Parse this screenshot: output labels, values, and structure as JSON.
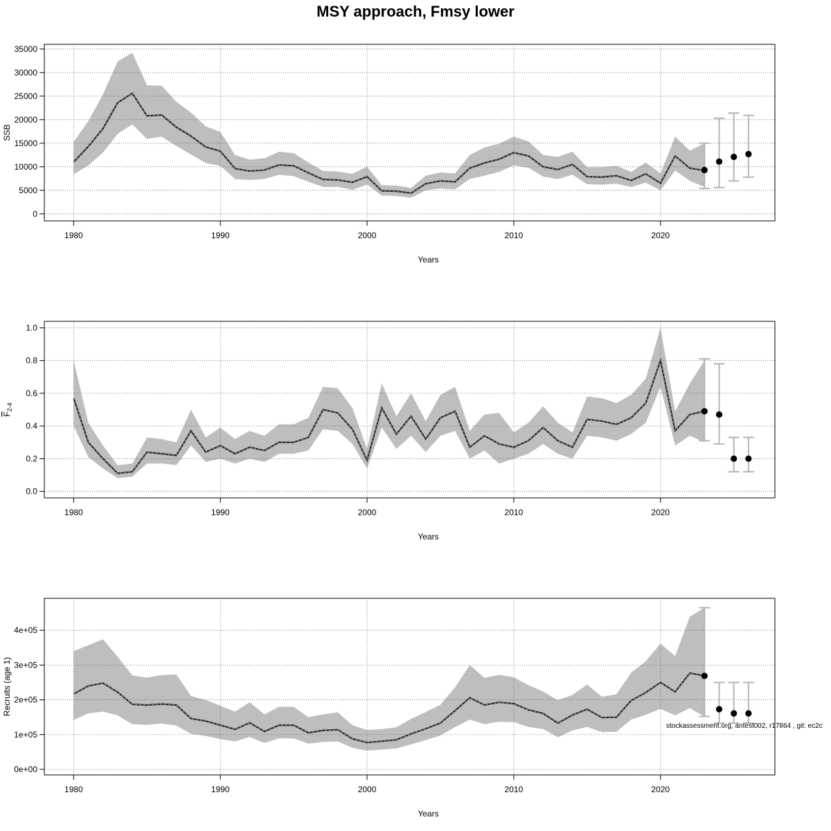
{
  "title": "MSY approach, Fmsy lower",
  "footnote": "stockassessment.org, antest002, r17864 , git: ec2c",
  "chart_data": [
    {
      "type": "line",
      "xlabel": "Years",
      "ylabel": "SSB",
      "xlim": [
        1978,
        2027.8
      ],
      "ylim": [
        -1500,
        36000
      ],
      "xticks": [
        1980,
        1990,
        2000,
        2010,
        2020
      ],
      "yticks": [
        0,
        5000,
        10000,
        15000,
        20000,
        25000,
        30000,
        35000
      ],
      "ytick_labels": [
        "0",
        "5000",
        "10000",
        "15000",
        "20000",
        "25000",
        "30000",
        "35000"
      ],
      "grid": true,
      "years": [
        1980,
        1981,
        1982,
        1983,
        1984,
        1985,
        1986,
        1987,
        1988,
        1989,
        1990,
        1991,
        1992,
        1993,
        1994,
        1995,
        1996,
        1997,
        1998,
        1999,
        2000,
        2001,
        2002,
        2003,
        2004,
        2005,
        2006,
        2007,
        2008,
        2009,
        2010,
        2011,
        2012,
        2013,
        2014,
        2015,
        2016,
        2017,
        2018,
        2019,
        2020,
        2021,
        2022,
        2023
      ],
      "estimate": [
        11000,
        14300,
        18100,
        23600,
        25600,
        20800,
        21000,
        18400,
        16500,
        14200,
        13300,
        9600,
        9100,
        9300,
        10400,
        10200,
        8700,
        7300,
        7200,
        6700,
        7900,
        4900,
        4800,
        4400,
        6400,
        7000,
        6800,
        9700,
        10800,
        11600,
        13000,
        12300,
        10000,
        9400,
        10500,
        7900,
        7800,
        8100,
        7100,
        8500,
        6500,
        12300,
        9700,
        9200
      ],
      "lower": [
        8400,
        10300,
        13000,
        17000,
        19000,
        15900,
        16400,
        14400,
        12600,
        10800,
        10200,
        7400,
        7200,
        7400,
        8300,
        8000,
        6800,
        5700,
        5700,
        5100,
        6200,
        3900,
        3800,
        3400,
        5000,
        5400,
        5200,
        7400,
        8100,
        8900,
        10300,
        9800,
        7900,
        7400,
        8300,
        6300,
        6200,
        6400,
        5700,
        6600,
        5000,
        9200,
        7000,
        5700
      ],
      "upper": [
        15300,
        19700,
        25400,
        32400,
        34200,
        27300,
        27200,
        23800,
        21500,
        18600,
        17400,
        12500,
        11500,
        11800,
        13200,
        12900,
        10900,
        9100,
        9000,
        8500,
        10000,
        6100,
        6000,
        5500,
        8100,
        8800,
        8600,
        12500,
        14100,
        14900,
        16400,
        15400,
        12500,
        12100,
        13200,
        9900,
        9900,
        10200,
        8900,
        10900,
        8600,
        16400,
        13400,
        15000
      ],
      "forecast": {
        "years": [
          2023,
          2024,
          2025,
          2026
        ],
        "median": [
          9300,
          11100,
          12100,
          12700
        ],
        "low": [
          5400,
          5600,
          7000,
          7800
        ],
        "high": [
          15000,
          20300,
          21400,
          20900
        ]
      }
    },
    {
      "type": "line",
      "xlabel": "Years",
      "ylabel": "F",
      "ylabel_sub": "2-4",
      "xlim": [
        1978,
        2027.8
      ],
      "ylim": [
        -0.04,
        1.04
      ],
      "xticks": [
        1980,
        1990,
        2000,
        2010,
        2020
      ],
      "yticks": [
        0,
        0.2,
        0.4,
        0.6,
        0.8,
        1.0
      ],
      "ytick_labels": [
        "0.0",
        "0.2",
        "0.4",
        "0.6",
        "0.8",
        "1.0"
      ],
      "grid": true,
      "years": [
        1980,
        1981,
        1982,
        1983,
        1984,
        1985,
        1986,
        1987,
        1988,
        1989,
        1990,
        1991,
        1992,
        1993,
        1994,
        1995,
        1996,
        1997,
        1998,
        1999,
        2000,
        2001,
        2002,
        2003,
        2004,
        2005,
        2006,
        2007,
        2008,
        2009,
        2010,
        2011,
        2012,
        2013,
        2014,
        2015,
        2016,
        2017,
        2018,
        2019,
        2020,
        2021,
        2022,
        2023
      ],
      "estimate": [
        0.57,
        0.3,
        0.2,
        0.11,
        0.12,
        0.24,
        0.23,
        0.22,
        0.37,
        0.24,
        0.28,
        0.23,
        0.27,
        0.25,
        0.3,
        0.3,
        0.33,
        0.5,
        0.48,
        0.38,
        0.19,
        0.51,
        0.35,
        0.46,
        0.32,
        0.45,
        0.49,
        0.27,
        0.34,
        0.29,
        0.27,
        0.31,
        0.39,
        0.31,
        0.27,
        0.44,
        0.43,
        0.41,
        0.45,
        0.54,
        0.8,
        0.37,
        0.47,
        0.49
      ],
      "lower": [
        0.4,
        0.21,
        0.14,
        0.08,
        0.09,
        0.17,
        0.17,
        0.16,
        0.28,
        0.18,
        0.2,
        0.17,
        0.2,
        0.18,
        0.23,
        0.23,
        0.25,
        0.38,
        0.37,
        0.29,
        0.14,
        0.39,
        0.26,
        0.34,
        0.24,
        0.34,
        0.37,
        0.2,
        0.25,
        0.17,
        0.2,
        0.23,
        0.29,
        0.23,
        0.2,
        0.34,
        0.33,
        0.31,
        0.35,
        0.42,
        0.64,
        0.28,
        0.34,
        0.3
      ],
      "upper": [
        0.8,
        0.42,
        0.28,
        0.16,
        0.17,
        0.33,
        0.32,
        0.3,
        0.5,
        0.33,
        0.39,
        0.32,
        0.37,
        0.34,
        0.41,
        0.41,
        0.45,
        0.64,
        0.63,
        0.51,
        0.26,
        0.66,
        0.46,
        0.6,
        0.43,
        0.59,
        0.64,
        0.37,
        0.47,
        0.48,
        0.36,
        0.42,
        0.52,
        0.42,
        0.36,
        0.58,
        0.57,
        0.54,
        0.59,
        0.69,
        1.0,
        0.49,
        0.66,
        0.8
      ],
      "forecast": {
        "years": [
          2023,
          2024,
          2025,
          2026
        ],
        "median": [
          0.49,
          0.47,
          0.2,
          0.2
        ],
        "low": [
          0.31,
          0.29,
          0.12,
          0.12
        ],
        "high": [
          0.81,
          0.78,
          0.33,
          0.33
        ]
      }
    },
    {
      "type": "line",
      "xlabel": "Years",
      "ylabel": "Recruits (age 1)",
      "xlim": [
        1978,
        2027.8
      ],
      "ylim": [
        -16000,
        492000
      ],
      "xticks": [
        1980,
        1990,
        2000,
        2010,
        2020
      ],
      "yticks": [
        0,
        100000,
        200000,
        300000,
        400000
      ],
      "ytick_labels": [
        "0e+00",
        "1e+05",
        "2e+05",
        "3e+05",
        "4e+05"
      ],
      "grid": true,
      "years": [
        1980,
        1981,
        1982,
        1983,
        1984,
        1985,
        1986,
        1987,
        1988,
        1989,
        1990,
        1991,
        1992,
        1993,
        1994,
        1995,
        1996,
        1997,
        1998,
        1999,
        2000,
        2001,
        2002,
        2003,
        2004,
        2005,
        2006,
        2007,
        2008,
        2009,
        2010,
        2011,
        2012,
        2013,
        2014,
        2015,
        2016,
        2017,
        2018,
        2019,
        2020,
        2021,
        2022,
        2023
      ],
      "estimate": [
        217000,
        240000,
        248000,
        222000,
        187000,
        185000,
        188000,
        185000,
        146000,
        139000,
        127000,
        115000,
        134000,
        109000,
        127000,
        127000,
        105000,
        112000,
        114000,
        88000,
        77000,
        81000,
        85000,
        102000,
        117000,
        133000,
        169000,
        206000,
        185000,
        193000,
        189000,
        171000,
        161000,
        133000,
        156000,
        173000,
        149000,
        150000,
        198000,
        221000,
        250000,
        223000,
        277000,
        269000
      ],
      "lower": [
        142000,
        161000,
        166000,
        155000,
        130000,
        128000,
        132000,
        126000,
        102000,
        96000,
        87000,
        80000,
        93000,
        76000,
        89000,
        89000,
        74000,
        79000,
        80000,
        62000,
        54000,
        57000,
        60000,
        72000,
        84000,
        97000,
        122000,
        143000,
        130000,
        137000,
        136000,
        122000,
        116000,
        92000,
        112000,
        122000,
        107000,
        108000,
        143000,
        157000,
        174000,
        155000,
        176000,
        152000
      ],
      "upper": [
        340000,
        357000,
        374000,
        324000,
        270000,
        264000,
        271000,
        273000,
        211000,
        200000,
        183000,
        166000,
        193000,
        158000,
        180000,
        180000,
        150000,
        158000,
        164000,
        127000,
        113000,
        116000,
        121000,
        145000,
        165000,
        186000,
        236000,
        300000,
        263000,
        272000,
        265000,
        242000,
        224000,
        199000,
        214000,
        244000,
        209000,
        216000,
        278000,
        311000,
        362000,
        326000,
        439000,
        465000
      ],
      "forecast": {
        "years": [
          2023,
          2024,
          2025,
          2026
        ],
        "median": [
          269000,
          173000,
          161000,
          161000
        ],
        "low": [
          152000,
          133000,
          133000,
          133000
        ],
        "high": [
          465000,
          250000,
          250000,
          250000
        ]
      }
    }
  ]
}
